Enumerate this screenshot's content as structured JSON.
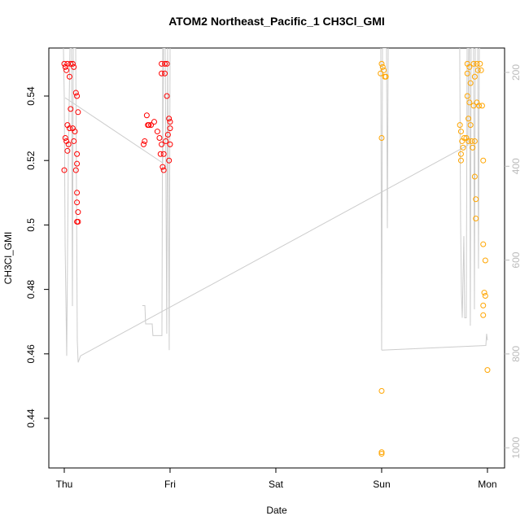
{
  "chart_data": {
    "type": "scatter",
    "title": "ATOM2 Northeast_Pacific_1 CH3Cl_GMI",
    "xlabel": "Date",
    "ylabel": "CH3Cl_GMI",
    "xlim": [
      -0.146,
      4.162
    ],
    "ylim": [
      0.4246,
      0.5549
    ],
    "y2lim": [
      1043,
      148
    ],
    "xticks": [
      {
        "value": 0,
        "label": "Thu"
      },
      {
        "value": 1,
        "label": "Fri"
      },
      {
        "value": 2,
        "label": "Sat"
      },
      {
        "value": 3,
        "label": "Sun"
      },
      {
        "value": 4,
        "label": "Mon"
      }
    ],
    "yticks": [
      0.44,
      0.46,
      0.48,
      0.5,
      0.52,
      0.54
    ],
    "y2ticks": [
      200,
      400,
      600,
      800,
      1000
    ],
    "series": [
      {
        "color": "#ff0000",
        "x": [
          0.0,
          0.01,
          0.03,
          0.06,
          0.08,
          0.09,
          0.02,
          0.05,
          0.11,
          0.12,
          0.13,
          0.06,
          0.03,
          0.05,
          0.08,
          0.1,
          0.01,
          0.02,
          0.04,
          0.09,
          0.03,
          0.12,
          0.12,
          0.11,
          0.0,
          0.12,
          0.12,
          0.13,
          0.13,
          0.12,
          0.75,
          0.76,
          0.78,
          0.79,
          0.8,
          0.82,
          0.85,
          0.88,
          0.9,
          0.92,
          0.93,
          0.94,
          0.92,
          0.95,
          0.97,
          0.92,
          0.95,
          0.97,
          0.99,
          1.0,
          1.0,
          0.98,
          0.96,
          1.0,
          0.99,
          0.94,
          0.91
        ],
        "values": [
          0.55,
          0.549,
          0.55,
          0.55,
          0.55,
          0.549,
          0.548,
          0.546,
          0.541,
          0.54,
          0.535,
          0.536,
          0.531,
          0.53,
          0.53,
          0.529,
          0.527,
          0.526,
          0.525,
          0.526,
          0.523,
          0.522,
          0.519,
          0.517,
          0.517,
          0.51,
          0.507,
          0.504,
          0.501,
          0.501,
          0.525,
          0.526,
          0.534,
          0.531,
          0.531,
          0.531,
          0.532,
          0.529,
          0.527,
          0.525,
          0.518,
          0.517,
          0.55,
          0.55,
          0.55,
          0.547,
          0.547,
          0.54,
          0.533,
          0.532,
          0.53,
          0.528,
          0.526,
          0.525,
          0.52,
          0.522,
          0.522
        ]
      },
      {
        "color": "#ffa500",
        "x": [
          3.0,
          3.01,
          3.02,
          2.99,
          3.03,
          3.04,
          3.0,
          3.0,
          3.0,
          3.0,
          3.74,
          3.75,
          3.76,
          3.77,
          3.75,
          3.75,
          3.78,
          3.8,
          3.82,
          3.85,
          3.88,
          3.81,
          3.83,
          3.87,
          3.9,
          3.93,
          3.81,
          3.84,
          3.88,
          3.91,
          3.94,
          3.81,
          3.83,
          3.87,
          3.9,
          3.92,
          3.95,
          3.82,
          3.84,
          3.86,
          3.88,
          3.89,
          3.89,
          3.96,
          3.96,
          3.98,
          3.97,
          3.98,
          3.96,
          3.96,
          4.0
        ],
        "values": [
          0.55,
          0.549,
          0.548,
          0.547,
          0.546,
          0.546,
          0.527,
          0.4485,
          0.4295,
          0.429,
          0.531,
          0.529,
          0.526,
          0.524,
          0.522,
          0.52,
          0.527,
          0.527,
          0.526,
          0.526,
          0.526,
          0.55,
          0.549,
          0.55,
          0.55,
          0.55,
          0.547,
          0.544,
          0.546,
          0.548,
          0.548,
          0.54,
          0.538,
          0.537,
          0.538,
          0.537,
          0.537,
          0.533,
          0.531,
          0.524,
          0.515,
          0.508,
          0.502,
          0.52,
          0.494,
          0.489,
          0.479,
          0.478,
          0.475,
          0.472,
          0.455
        ]
      },
      {
        "type": "line",
        "axis": "y2",
        "color": "#cccccc",
        "x": [
          -0.008,
          0,
          0.008,
          0.023,
          0.038,
          0.054,
          0.069,
          0.077,
          0.085,
          0.108,
          0.123,
          0.131,
          0.154,
          3.815,
          3.823,
          null,
          0.008,
          0.931,
          0.938,
          0.954,
          0.969,
          0.977,
          0.992,
          1.0,
          null,
          0.738,
          0.762,
          0.769,
          0.831,
          0.838,
          0.923,
          0.931,
          null,
          2.992,
          3.0,
          3.008,
          3.046,
          3.054,
          3.062,
          null,
          3.0,
          3.985,
          3.992,
          4.0,
          null,
          3.738,
          3.746,
          3.754,
          3.762,
          3.777,
          3.785,
          3.8,
          3.808,
          3.831,
          3.838,
          3.846,
          3.869,
          3.877,
          3.885,
          3.908,
          3.915,
          3.923,
          3.931
        ],
        "values": [
          148,
          254,
          566,
          804,
          393,
          148,
          148,
          698,
          148,
          148,
          771,
          818,
          804,
          355,
          148,
          null,
          254,
          393,
          148,
          148,
          757,
          148,
          792,
          148,
          null,
          697,
          697,
          736,
          736,
          761,
          761,
          148,
          null,
          148,
          792,
          148,
          148,
          532,
          148,
          null,
          792,
          782,
          757,
          771,
          null,
          148,
          514,
          670,
          723,
          549,
          723,
          723,
          148,
          148,
          740,
          148,
          148,
          705,
          148,
          148,
          618,
          148,
          148
        ]
      }
    ]
  }
}
